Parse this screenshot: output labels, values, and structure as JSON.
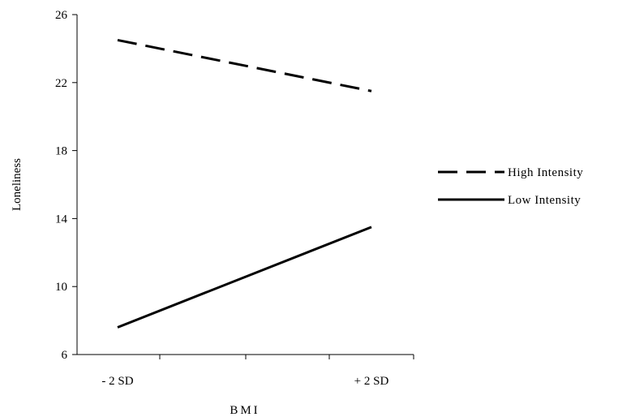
{
  "chart_data": {
    "type": "line",
    "title": "",
    "xlabel": "BMI",
    "ylabel": "Loneliness",
    "categories": [
      "- 2 SD",
      "+ 2 SD"
    ],
    "ylim": [
      6,
      26
    ],
    "yticks": [
      6,
      10,
      14,
      18,
      22,
      26
    ],
    "grid": false,
    "legend_position": "right",
    "series": [
      {
        "name": "High Intensity",
        "values": [
          24.5,
          21.5
        ],
        "style": "dashed",
        "color": "#000000"
      },
      {
        "name": "Low Intensity",
        "values": [
          7.6,
          13.5
        ],
        "style": "solid",
        "color": "#000000"
      }
    ]
  }
}
